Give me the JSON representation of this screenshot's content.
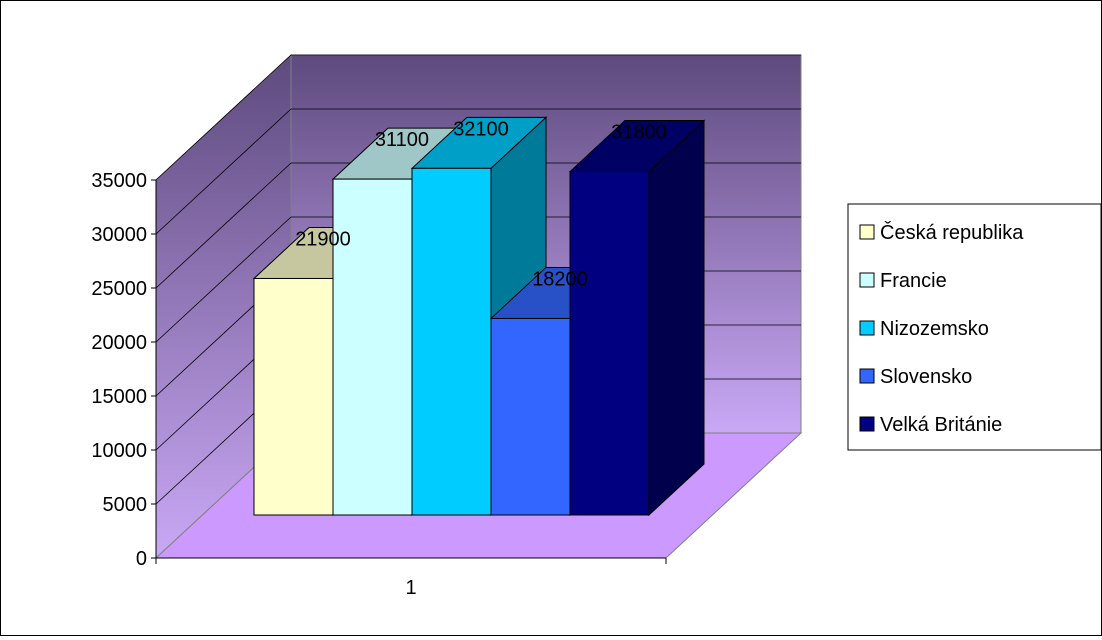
{
  "chart_data": {
    "type": "bar",
    "style": "3d-clustered-column",
    "categories": [
      "1"
    ],
    "series": [
      {
        "name": "Česká republika",
        "values": [
          21900
        ],
        "data_label": "21900",
        "color": "#FFFFCC"
      },
      {
        "name": "Francie",
        "values": [
          31100
        ],
        "data_label": "31100",
        "color": "#CCFFFF"
      },
      {
        "name": "Nizozemsko",
        "values": [
          32100
        ],
        "data_label": "32100",
        "color": "#00CCFF"
      },
      {
        "name": "Slovensko",
        "values": [
          18200
        ],
        "data_label": "18200",
        "color": "#3366FF"
      },
      {
        "name": "Velká Británie",
        "values": [
          31800
        ],
        "data_label": "31800",
        "color": "#000080"
      }
    ],
    "y_ticks": [
      "0",
      "5000",
      "10000",
      "15000",
      "20000",
      "25000",
      "30000",
      "35000"
    ],
    "x_tick_labels": [
      "1"
    ],
    "ylim": [
      0,
      35000
    ],
    "grid": true,
    "legend": "right",
    "wall_color": "#7F6BA8",
    "floor_color": "#CC99FF"
  }
}
